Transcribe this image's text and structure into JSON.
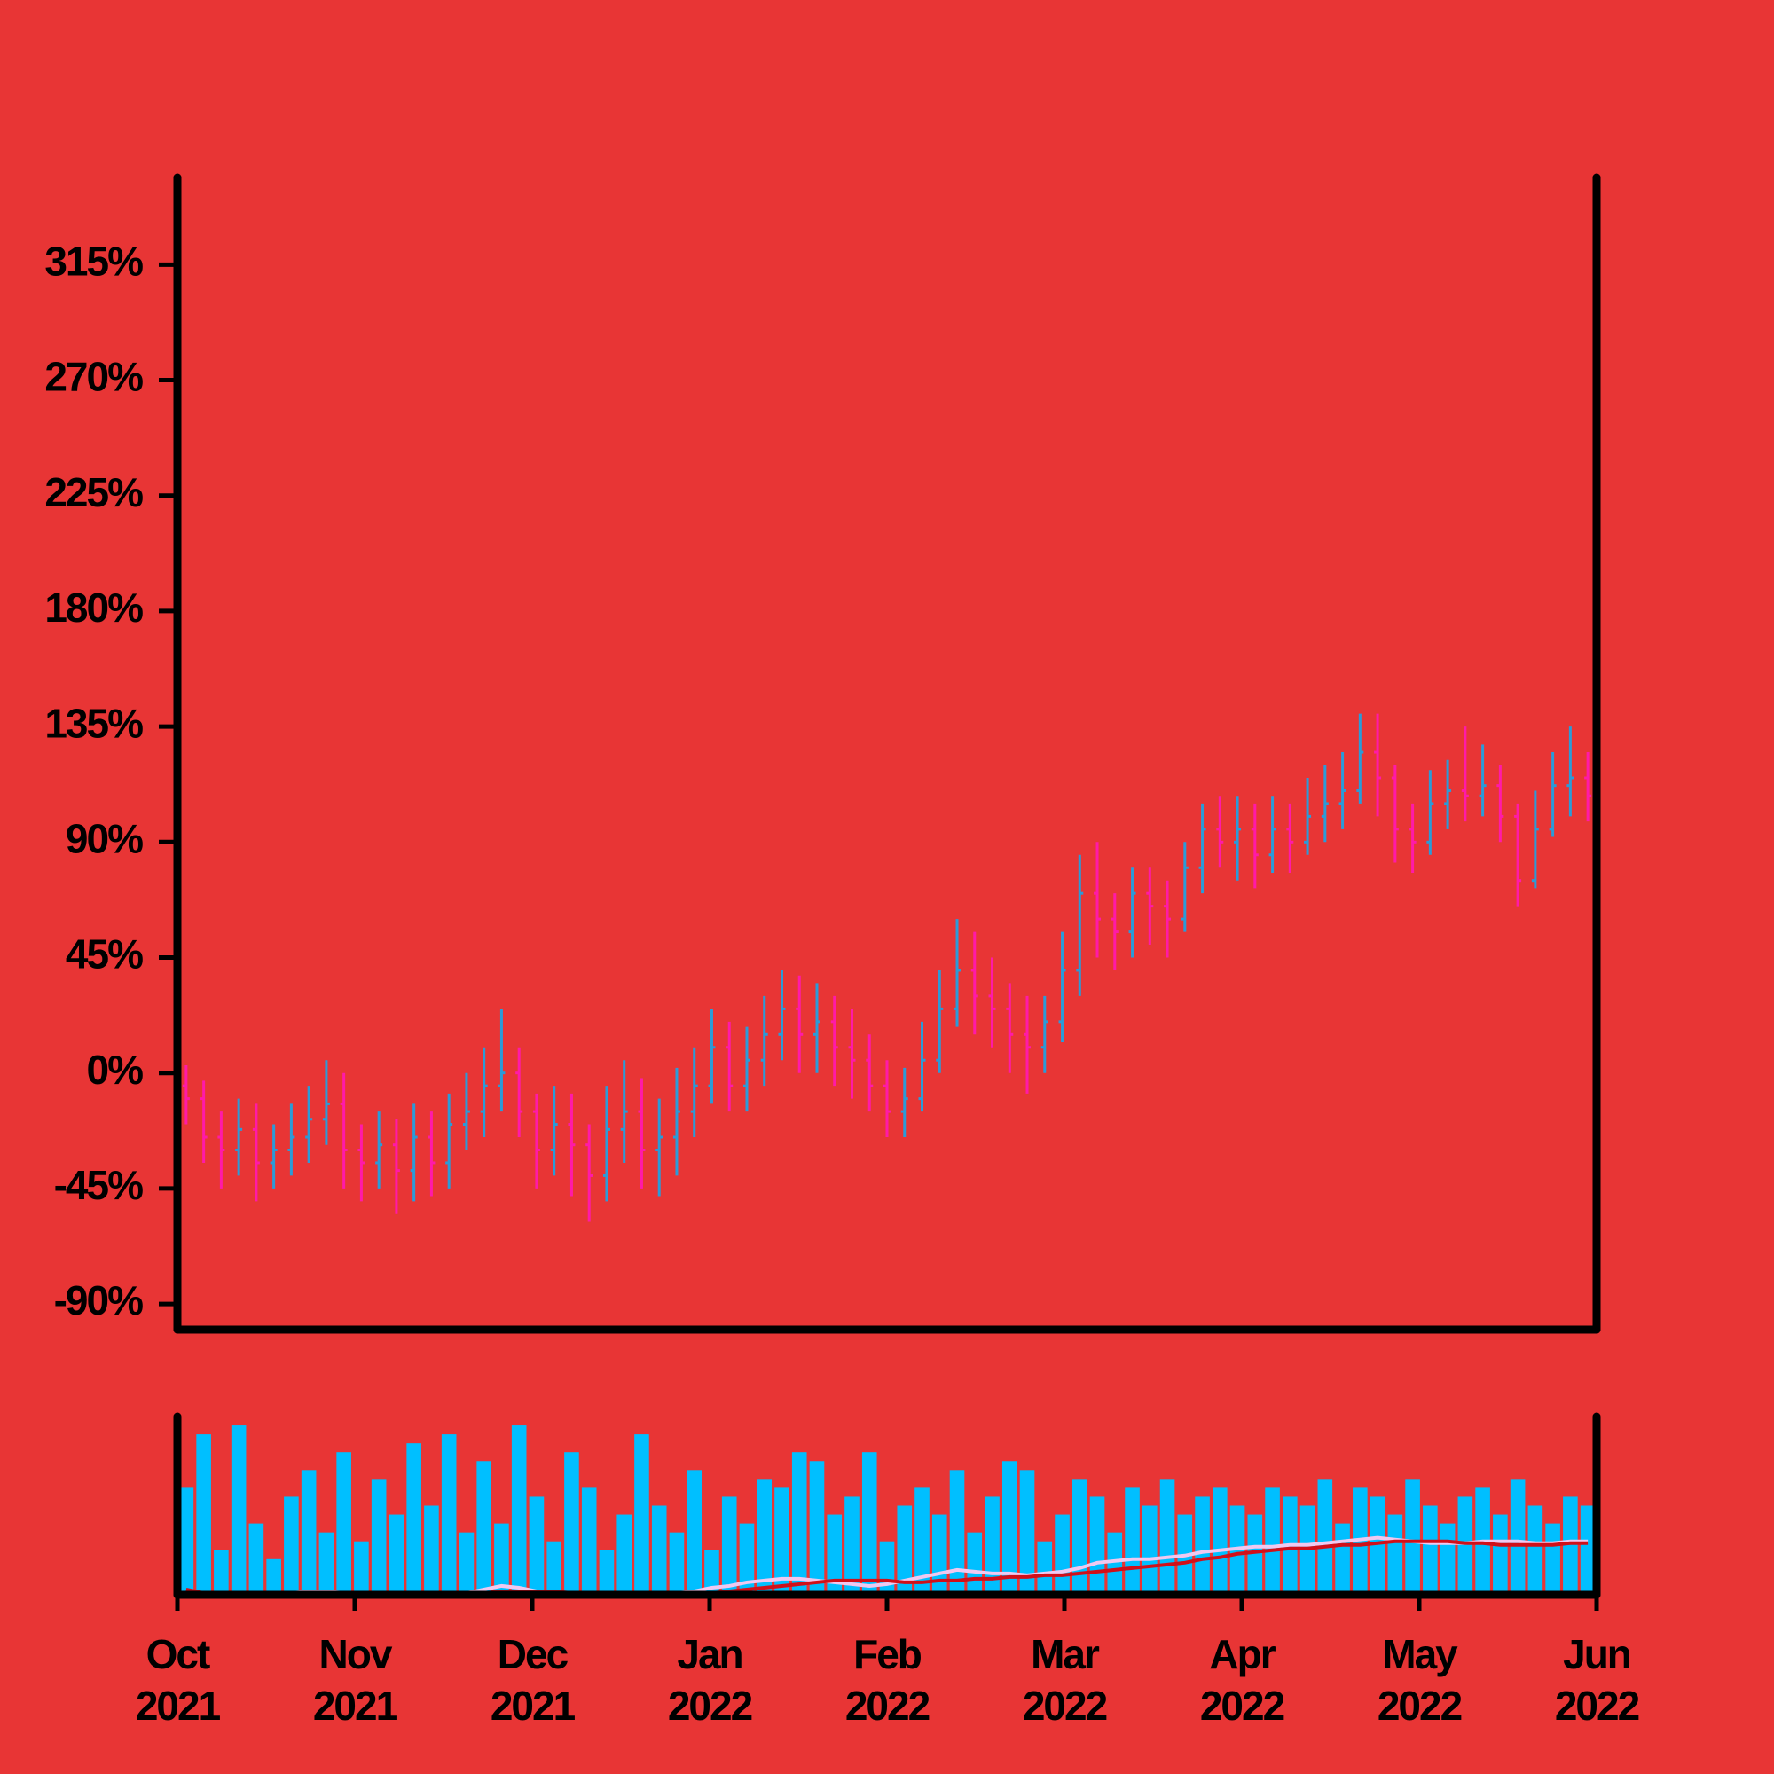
{
  "chart_data": {
    "type": "ohlc",
    "open": [
      -5,
      -10,
      -25,
      -30,
      -22,
      -35,
      -30,
      -25,
      -18,
      -12,
      -30,
      -35,
      -28,
      -38,
      -25,
      -35,
      -20,
      -15,
      -5,
      0,
      -15,
      -30,
      -20,
      -28,
      -40,
      -22,
      -15,
      -30,
      -25,
      -15,
      -5,
      10,
      -5,
      5,
      15,
      25,
      15,
      20,
      10,
      5,
      -5,
      -15,
      -10,
      5,
      25,
      40,
      30,
      25,
      15,
      10,
      20,
      40,
      70,
      60,
      55,
      70,
      65,
      60,
      80,
      95,
      90,
      95,
      85,
      95,
      90,
      100,
      105,
      110,
      125,
      115,
      95,
      90,
      105,
      110,
      108,
      112,
      100,
      75,
      95,
      112,
      115
    ],
    "high": [
      3,
      -3,
      -15,
      -10,
      -12,
      -20,
      -12,
      -5,
      5,
      0,
      -20,
      -15,
      -18,
      -12,
      -15,
      -8,
      0,
      10,
      25,
      10,
      -8,
      -5,
      -8,
      -20,
      -5,
      5,
      -2,
      -10,
      2,
      10,
      25,
      20,
      18,
      30,
      40,
      38,
      35,
      30,
      25,
      15,
      5,
      2,
      20,
      40,
      60,
      55,
      45,
      35,
      30,
      30,
      55,
      85,
      90,
      70,
      80,
      80,
      75,
      90,
      105,
      108,
      108,
      105,
      108,
      105,
      115,
      120,
      125,
      140,
      140,
      120,
      105,
      118,
      122,
      135,
      128,
      120,
      105,
      110,
      125,
      135,
      125
    ],
    "low": [
      -20,
      -35,
      -45,
      -40,
      -50,
      -45,
      -40,
      -35,
      -28,
      -45,
      -50,
      -45,
      -55,
      -50,
      -48,
      -45,
      -30,
      -25,
      -15,
      -25,
      -45,
      -40,
      -48,
      -58,
      -50,
      -35,
      -45,
      -48,
      -40,
      -25,
      -12,
      -15,
      -15,
      -5,
      5,
      0,
      0,
      -5,
      -10,
      -15,
      -25,
      -25,
      -15,
      0,
      18,
      15,
      10,
      0,
      -8,
      0,
      12,
      30,
      45,
      40,
      45,
      50,
      45,
      55,
      70,
      80,
      75,
      72,
      78,
      78,
      85,
      90,
      95,
      105,
      100,
      82,
      78,
      85,
      95,
      98,
      100,
      90,
      65,
      72,
      92,
      100,
      98
    ],
    "close": [
      -10,
      -25,
      -30,
      -22,
      -35,
      -30,
      -25,
      -18,
      -12,
      -30,
      -35,
      -28,
      -38,
      -25,
      -35,
      -20,
      -15,
      -5,
      0,
      -15,
      -30,
      -20,
      -28,
      -40,
      -22,
      -15,
      -30,
      -25,
      -15,
      -5,
      10,
      -5,
      5,
      15,
      25,
      15,
      20,
      10,
      5,
      -5,
      -15,
      -10,
      5,
      25,
      40,
      30,
      25,
      15,
      10,
      20,
      40,
      70,
      60,
      55,
      70,
      65,
      60,
      80,
      95,
      90,
      95,
      85,
      95,
      90,
      100,
      105,
      110,
      125,
      115,
      95,
      90,
      105,
      110,
      108,
      112,
      100,
      75,
      95,
      112,
      115,
      108
    ],
    "up_color": "#2b9bd8",
    "down_color": "#ff1aa8",
    "ylim": [
      -100,
      349
    ],
    "yticks": [
      {
        "value": -90,
        "label": "-90%"
      },
      {
        "value": -45,
        "label": "-45%"
      },
      {
        "value": 0,
        "label": "0%"
      },
      {
        "value": 45,
        "label": "45%"
      },
      {
        "value": 90,
        "label": "90%"
      },
      {
        "value": 135,
        "label": "135%"
      },
      {
        "value": 180,
        "label": "180%"
      },
      {
        "value": 225,
        "label": "225%"
      },
      {
        "value": 270,
        "label": "270%"
      },
      {
        "value": 315,
        "label": "315%"
      }
    ],
    "xlim": [
      "2021-10",
      "2022-06"
    ],
    "xticks": [
      {
        "value": "2021-10",
        "label": "Oct 2021"
      },
      {
        "value": "2021-11",
        "label": "Nov 2021"
      },
      {
        "value": "2021-12",
        "label": "Dec 2021"
      },
      {
        "value": "2022-01",
        "label": "Jan 2022"
      },
      {
        "value": "2022-02",
        "label": "Feb 2022"
      },
      {
        "value": "2022-03",
        "label": "Mar 2022"
      },
      {
        "value": "2022-04",
        "label": "Apr 2022"
      },
      {
        "value": "2022-05",
        "label": "May 2022"
      },
      {
        "value": "2022-06",
        "label": "Jun 2022"
      }
    ],
    "volume": {
      "color": "#00bfff",
      "ylim": [
        0,
        100
      ],
      "values": [
        60,
        90,
        25,
        95,
        40,
        20,
        55,
        70,
        35,
        80,
        30,
        65,
        45,
        85,
        50,
        90,
        35,
        75,
        40,
        95,
        55,
        30,
        80,
        60,
        25,
        45,
        90,
        50,
        35,
        70,
        25,
        55,
        40,
        65,
        60,
        80,
        75,
        45,
        55,
        80,
        30,
        50,
        60,
        45,
        70,
        35,
        55,
        75,
        70,
        30,
        45,
        65,
        55,
        35,
        60,
        50,
        65,
        45,
        55,
        60,
        50,
        45,
        60,
        55,
        50,
        65,
        40,
        60,
        55,
        45,
        65,
        50,
        40,
        55,
        60,
        45,
        65,
        50,
        40,
        55,
        50
      ]
    },
    "moving_averages": [
      {
        "color": "#f0c8f0",
        "values": [
          2,
          1,
          1,
          0,
          0,
          0,
          1,
          2,
          2,
          1,
          0,
          0,
          0,
          0,
          0,
          0,
          1,
          3,
          5,
          4,
          2,
          1,
          1,
          0,
          0,
          0,
          0,
          1,
          1,
          2,
          4,
          5,
          7,
          8,
          9,
          9,
          8,
          7,
          6,
          5,
          6,
          8,
          10,
          12,
          14,
          13,
          12,
          12,
          11,
          12,
          13,
          15,
          18,
          19,
          20,
          20,
          21,
          22,
          24,
          25,
          26,
          27,
          27,
          28,
          28,
          29,
          30,
          31,
          32,
          31,
          30,
          29,
          29,
          29,
          30,
          30,
          30,
          29,
          29,
          30,
          30
        ]
      },
      {
        "color": "#d0101a",
        "values": [
          3,
          1,
          0,
          0,
          0,
          0,
          0,
          0,
          0,
          0,
          0,
          0,
          0,
          0,
          0,
          0,
          0,
          1,
          2,
          2,
          2,
          2,
          1,
          1,
          1,
          0,
          0,
          0,
          0,
          0,
          1,
          2,
          3,
          4,
          5,
          6,
          7,
          8,
          8,
          8,
          8,
          7,
          7,
          8,
          8,
          9,
          9,
          10,
          10,
          11,
          11,
          12,
          13,
          14,
          15,
          16,
          17,
          18,
          20,
          21,
          23,
          24,
          25,
          26,
          26,
          27,
          28,
          28,
          29,
          30,
          30,
          30,
          30,
          29,
          29,
          28,
          28,
          28,
          28,
          29,
          29
        ]
      }
    ]
  }
}
